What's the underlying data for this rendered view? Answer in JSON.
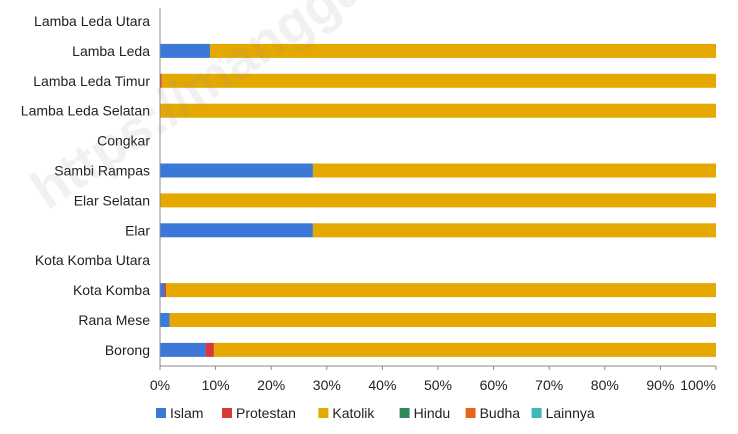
{
  "chart_data": {
    "type": "bar",
    "orientation": "horizontal",
    "stacked": "percent",
    "categories": [
      "Lamba Leda Utara",
      "Lamba Leda",
      "Lamba Leda Timur",
      "Lamba Leda Selatan",
      "Congkar",
      "Sambi Rampas",
      "Elar Selatan",
      "Elar",
      "Kota Komba Utara",
      "Kota Komba",
      "Rana Mese",
      "Borong"
    ],
    "series": [
      {
        "name": "Islam",
        "color": "#3c78d8",
        "values": [
          0,
          9,
          0,
          0,
          0,
          27.5,
          0,
          27.5,
          0,
          0.8,
          1.7,
          8.2
        ]
      },
      {
        "name": "Protestan",
        "color": "#d9383a",
        "values": [
          0,
          0,
          0.3,
          0,
          0,
          0,
          0,
          0,
          0,
          0.3,
          0,
          1.5
        ]
      },
      {
        "name": "Katolik",
        "color": "#e4a800",
        "values": [
          0,
          91,
          99.7,
          100,
          0,
          72.5,
          100,
          72.5,
          0,
          98.9,
          98.3,
          90.3
        ]
      },
      {
        "name": "Hindu",
        "color": "#2e8b57",
        "values": [
          0,
          0,
          0,
          0,
          0,
          0,
          0,
          0,
          0,
          0,
          0,
          0
        ]
      },
      {
        "name": "Budha",
        "color": "#e8641a",
        "values": [
          0,
          0,
          0,
          0,
          0,
          0,
          0,
          0,
          0,
          0,
          0,
          0
        ]
      },
      {
        "name": "Lainnya",
        "color": "#3cb8b8",
        "values": [
          0,
          0,
          0,
          0,
          0,
          0,
          0,
          0,
          0,
          0,
          0,
          0
        ]
      }
    ],
    "xlim": [
      0,
      100
    ],
    "xticks": [
      "0%",
      "10%",
      "20%",
      "30%",
      "40%",
      "50%",
      "60%",
      "70%",
      "80%",
      "90%",
      "100%"
    ],
    "grid": false,
    "legend_position": "bottom",
    "watermark": "https://manggaraitimurkab.bps"
  }
}
